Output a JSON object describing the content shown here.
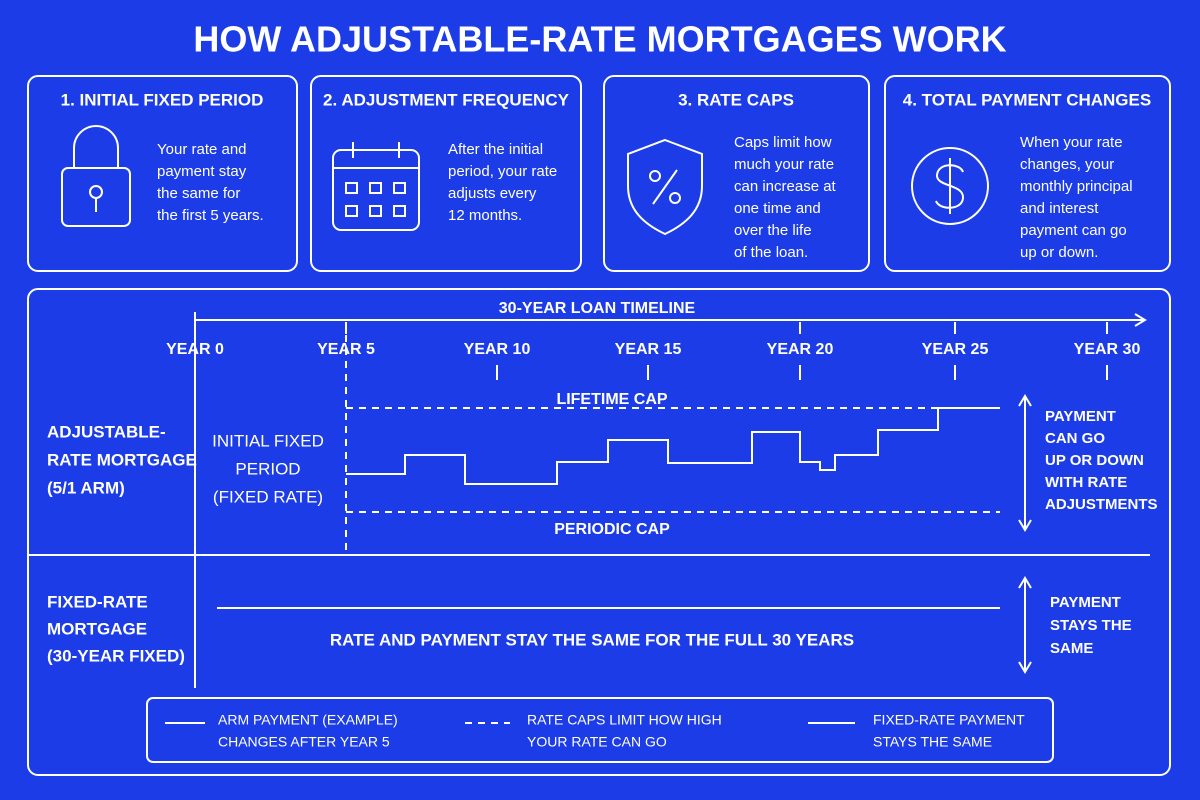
{
  "title": "HOW ADJUSTABLE-RATE MORTGAGES WORK",
  "cards": [
    {
      "heading": "1. INITIAL FIXED PERIOD",
      "text": [
        "Your rate and",
        "payment stay",
        "the same for",
        "the first 5 years."
      ]
    },
    {
      "heading": "2. ADJUSTMENT FREQUENCY",
      "text": [
        "After the initial",
        "period, your rate",
        "adjusts every",
        "12 months."
      ]
    },
    {
      "heading": "3. RATE CAPS",
      "text": [
        "Caps limit how",
        "much your rate",
        "can increase at",
        "one time and",
        "over the life",
        "of the loan."
      ]
    },
    {
      "heading": "4. TOTAL PAYMENT CHANGES",
      "text": [
        "When your rate",
        "changes, your",
        "monthly principal",
        "and interest",
        "payment can go",
        "up or down."
      ]
    }
  ],
  "timeline": {
    "title": "30-YEAR LOAN TIMELINE",
    "years": [
      "YEAR 0",
      "YEAR 5",
      "YEAR 10",
      "YEAR 15",
      "YEAR 20",
      "YEAR 25",
      "YEAR 30"
    ]
  },
  "arm": {
    "label": [
      "ADJUSTABLE-",
      "RATE MORTGAGE",
      "(5/1 ARM)"
    ],
    "initial_period": [
      "INITIAL FIXED",
      "PERIOD",
      "(FIXED RATE)"
    ],
    "lifetime_cap": "LIFETIME CAP",
    "periodic_cap": "PERIODIC CAP",
    "note": [
      "PAYMENT",
      "CAN GO",
      "UP OR DOWN",
      "WITH RATE",
      "ADJUSTMENTS"
    ]
  },
  "fixed": {
    "label": [
      "FIXED-RATE",
      "MORTGAGE",
      "(30-YEAR FIXED)"
    ],
    "text": "RATE AND PAYMENT STAY THE SAME FOR THE FULL 30 YEARS",
    "note": [
      "PAYMENT",
      "STAYS THE",
      "SAME"
    ]
  },
  "legend": [
    {
      "text": [
        "ARM PAYMENT (EXAMPLE)",
        "CHANGES AFTER YEAR 5"
      ]
    },
    {
      "text": [
        "RATE CAPS LIMIT HOW HIGH",
        "YOUR RATE CAN GO"
      ]
    },
    {
      "text": [
        "FIXED-RATE PAYMENT",
        "STAYS THE SAME"
      ]
    }
  ]
}
